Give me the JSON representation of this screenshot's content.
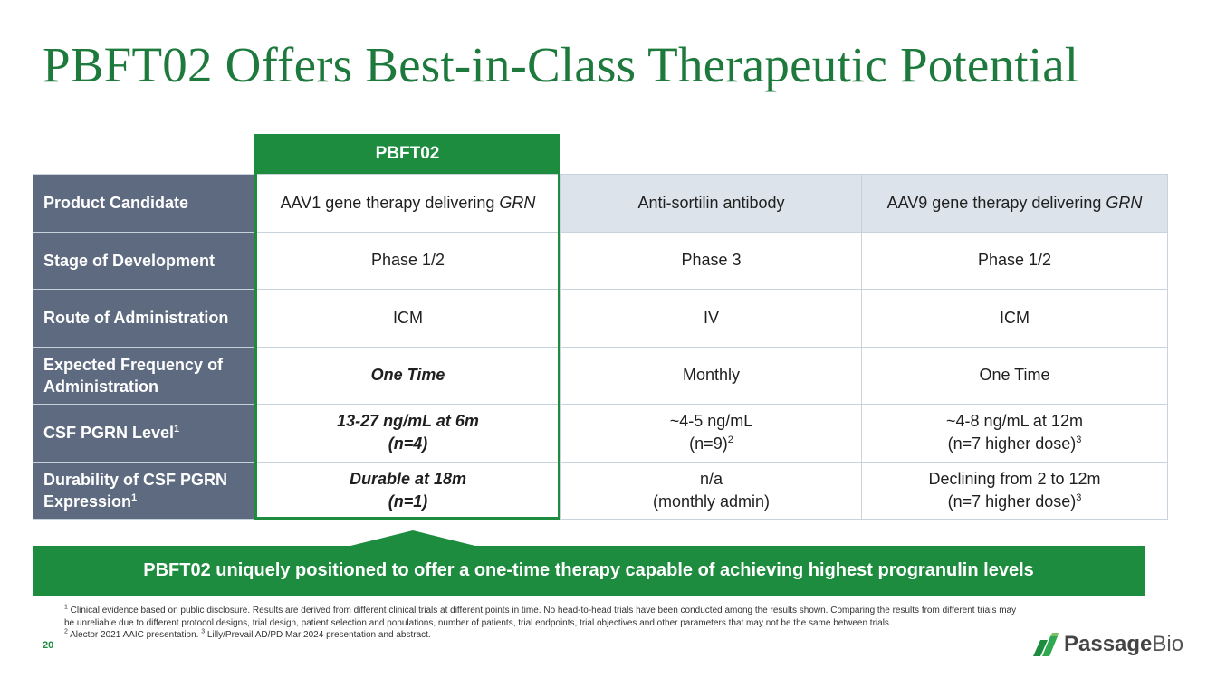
{
  "slide": {
    "title": "PBFT02 Offers Best-in-Class Therapeutic Potential",
    "page_number": "20"
  },
  "table": {
    "highlight_header": "PBFT02",
    "rows": [
      {
        "label": "Product Candidate",
        "pbft02": "AAV1 gene therapy delivering ",
        "pbft02_italic": "GRN",
        "comp1": "Anti-sortilin antibody",
        "comp2": "AAV9 gene therapy delivering ",
        "comp2_italic": "GRN"
      },
      {
        "label": "Stage of Development",
        "pbft02": "Phase 1/2",
        "comp1": "Phase 3",
        "comp2": "Phase 1/2"
      },
      {
        "label": "Route of Administration",
        "pbft02": "ICM",
        "comp1": "IV",
        "comp2": "ICM"
      },
      {
        "label": "Expected Frequency of Administration",
        "pbft02": "One Time",
        "comp1": "Monthly",
        "comp2": "One Time"
      },
      {
        "label": "CSF PGRN Level",
        "label_sup": "1",
        "pbft02_line1": "13-27 ng/mL at 6m",
        "pbft02_line2": "(n=4)",
        "comp1_line1": "~4-5 ng/mL",
        "comp1_line2": "(n=9)",
        "comp1_sup": "2",
        "comp2_line1": "~4-8 ng/mL at 12m",
        "comp2_line2": "(n=7 higher dose)",
        "comp2_sup": "3"
      },
      {
        "label": "Durability of CSF PGRN Expression",
        "label_sup": "1",
        "pbft02_line1": "Durable at 18m",
        "pbft02_line2": "(n=1)",
        "comp1_line1": "n/a",
        "comp1_line2": "(monthly admin)",
        "comp2_line1": "Declining from 2 to 12m",
        "comp2_line2": "(n=7 higher dose)",
        "comp2_sup": "3"
      }
    ]
  },
  "banner": {
    "text": "PBFT02 uniquely positioned to offer a one-time therapy capable of achieving highest progranulin levels"
  },
  "footnotes": {
    "fn1_marker": "1",
    "fn1_text": " Clinical evidence based on public disclosure. Results are derived from different clinical trials at different points in time. No head-to-head trials have been conducted among the results shown.  Comparing the results from different trials may be unreliable due to different protocol designs, trial design, patient selection and populations, number of patients, trial endpoints, trial objectives and other parameters that may not be the same between trials.",
    "fn2_marker": "2",
    "fn2_text": " Alector 2021 AAIC presentation. ",
    "fn3_marker": "3",
    "fn3_text": " Lilly/Prevail AD/PD Mar 2024 presentation and abstract."
  },
  "logo": {
    "word_bold": "Passage",
    "word_light": "Bio",
    "icon": "passage-bio-logo-mark"
  },
  "colors": {
    "brand_green": "#1e8c3f",
    "row_label_bg": "#5d6a7f",
    "header_row_bg": "#dde3ea"
  }
}
